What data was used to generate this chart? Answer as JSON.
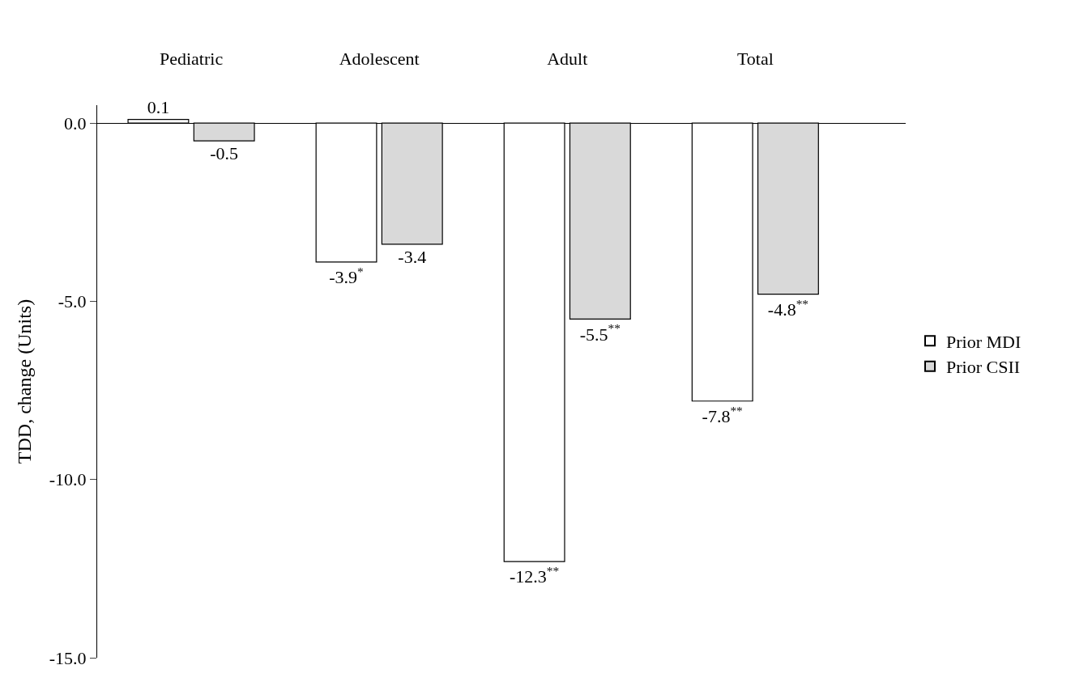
{
  "chart_data": {
    "type": "bar",
    "ylabel": "TDD, change (Units)",
    "categories": [
      "Pediatric",
      "Adolescent",
      "Adult",
      "Total"
    ],
    "series": [
      {
        "name": "Prior MDI",
        "color": "#ffffff",
        "values": [
          0.1,
          -3.9,
          -12.3,
          -7.8
        ],
        "value_labels": [
          "0.1",
          "-3.9$^{*}$",
          "-12.3$^{**}$",
          "-7.8$^{**}$"
        ]
      },
      {
        "name": "Prior CSII",
        "color": "#d9d9d9",
        "values": [
          -0.5,
          -3.4,
          -5.5,
          -4.8
        ],
        "value_labels": [
          "-0.5",
          "-3.4",
          "-5.5$^{**}$",
          "-4.8$^{**}$"
        ]
      }
    ],
    "ylim": [
      -15,
      0.5
    ],
    "yticks": [
      {
        "value": 0,
        "label": "0.0"
      },
      {
        "value": -5,
        "label": "-5.0"
      },
      {
        "value": -10,
        "label": "-10.0"
      },
      {
        "value": -15,
        "label": "-15.0"
      }
    ],
    "legend": "right"
  }
}
